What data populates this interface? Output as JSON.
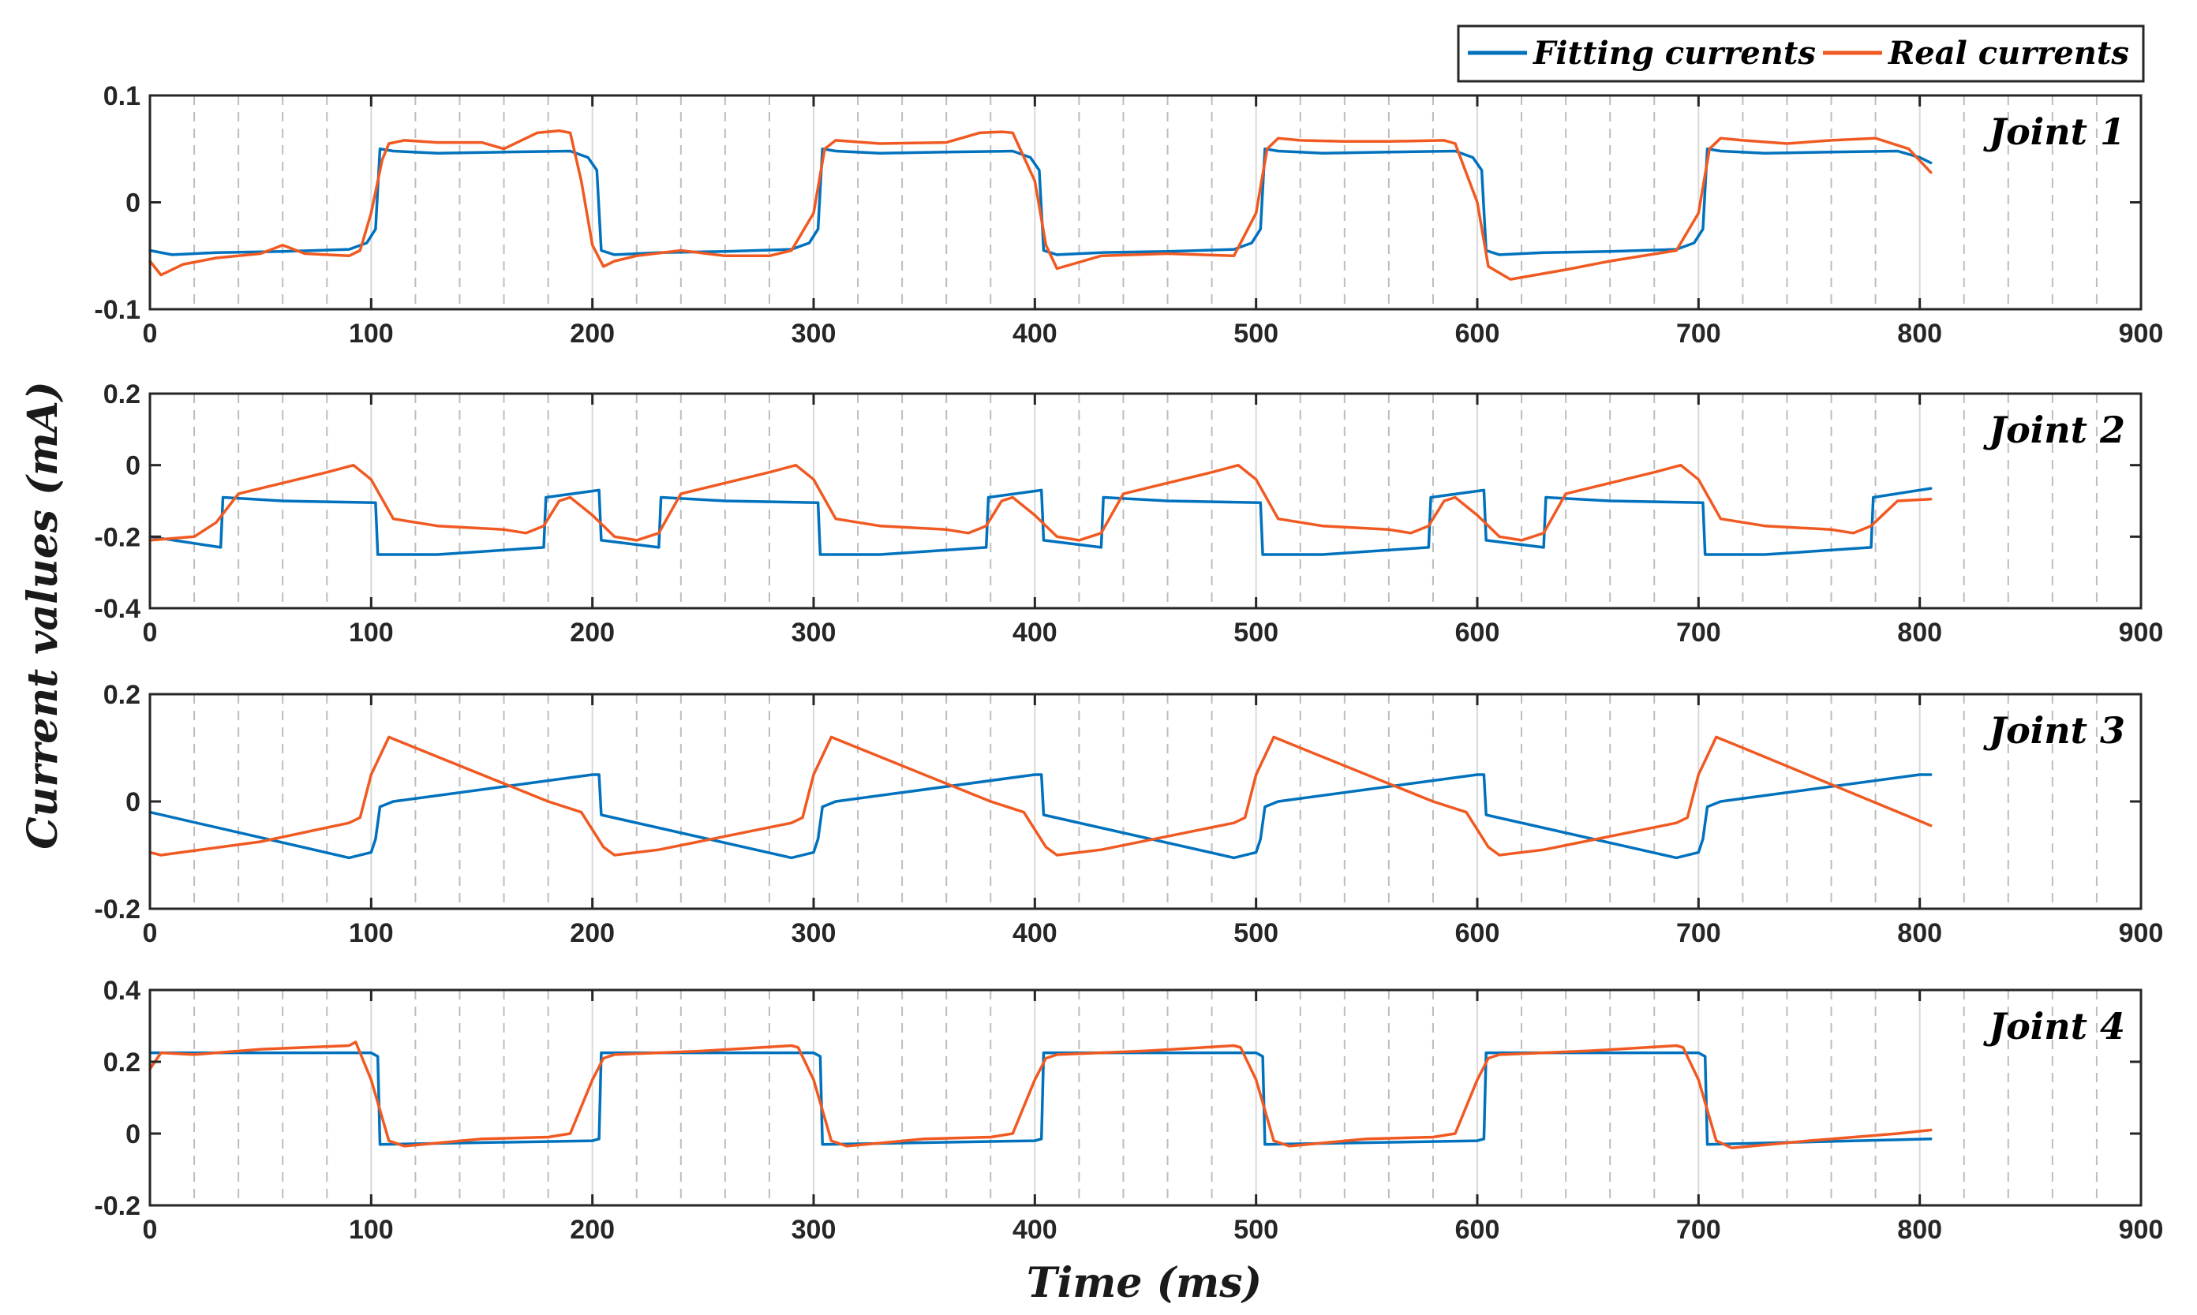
{
  "chart_data": {
    "type": "line",
    "xlabel": "Time (ms)",
    "ylabel": "Current values (mA)",
    "xlim": [
      0,
      900
    ],
    "xticks": [
      0,
      100,
      200,
      300,
      400,
      500,
      600,
      700,
      800,
      900
    ],
    "xtick_labels": [
      "0",
      "100",
      "200",
      "300",
      "400",
      "500",
      "600",
      "700",
      "800",
      "900"
    ],
    "grid": "vertical dashed every 20 ms",
    "legend": {
      "position": "top-right",
      "entries": [
        {
          "name": "Fitting currents",
          "color": "#0072BD"
        },
        {
          "name": "Real currents",
          "color": "#F05A22"
        }
      ]
    },
    "panels": [
      {
        "label": "Joint 1",
        "ylim": [
          -0.1,
          0.1
        ],
        "yticks": [
          -0.1,
          0,
          0.1
        ],
        "ytick_labels": [
          "-0.1",
          "0",
          "0.1"
        ],
        "series": [
          {
            "name": "Fitting currents",
            "color": "#0072BD",
            "x": [
              0,
              10,
              30,
              60,
              90,
              98,
              102,
              104,
              110,
              130,
              160,
              190,
              198,
              202,
              204,
              210,
              230,
              260,
              290,
              298,
              302,
              304,
              310,
              330,
              360,
              390,
              398,
              402,
              404,
              410,
              430,
              460,
              490,
              498,
              502,
              504,
              510,
              530,
              560,
              590,
              598,
              602,
              604,
              610,
              630,
              660,
              690,
              698,
              702,
              704,
              710,
              730,
              760,
              790,
              800,
              805
            ],
            "y": [
              -0.045,
              -0.049,
              -0.047,
              -0.046,
              -0.044,
              -0.038,
              -0.025,
              0.05,
              0.048,
              0.046,
              0.047,
              0.048,
              0.042,
              0.03,
              -0.045,
              -0.049,
              -0.047,
              -0.046,
              -0.044,
              -0.038,
              -0.025,
              0.05,
              0.048,
              0.046,
              0.047,
              0.048,
              0.042,
              0.03,
              -0.045,
              -0.049,
              -0.047,
              -0.046,
              -0.044,
              -0.038,
              -0.025,
              0.05,
              0.048,
              0.046,
              0.047,
              0.048,
              0.042,
              0.03,
              -0.045,
              -0.049,
              -0.047,
              -0.046,
              -0.044,
              -0.038,
              -0.025,
              0.05,
              0.048,
              0.046,
              0.047,
              0.048,
              0.042,
              0.037
            ]
          },
          {
            "name": "Real currents",
            "color": "#F05A22",
            "x": [
              0,
              5,
              15,
              30,
              50,
              60,
              70,
              90,
              95,
              100,
              105,
              108,
              115,
              130,
              150,
              160,
              175,
              185,
              190,
              195,
              200,
              205,
              210,
              220,
              240,
              260,
              280,
              290,
              300,
              305,
              310,
              330,
              360,
              375,
              385,
              390,
              400,
              405,
              410,
              430,
              460,
              490,
              500,
              505,
              510,
              520,
              540,
              560,
              585,
              590,
              600,
              605,
              615,
              640,
              660,
              690,
              700,
              705,
              710,
              720,
              740,
              760,
              780,
              795,
              805
            ],
            "y": [
              -0.055,
              -0.068,
              -0.058,
              -0.052,
              -0.048,
              -0.04,
              -0.048,
              -0.05,
              -0.045,
              -0.01,
              0.04,
              0.055,
              0.058,
              0.056,
              0.056,
              0.05,
              0.065,
              0.067,
              0.065,
              0.02,
              -0.04,
              -0.06,
              -0.055,
              -0.05,
              -0.045,
              -0.05,
              -0.05,
              -0.045,
              -0.01,
              0.05,
              0.058,
              0.055,
              0.056,
              0.065,
              0.066,
              0.065,
              0.02,
              -0.04,
              -0.062,
              -0.05,
              -0.048,
              -0.05,
              -0.01,
              0.05,
              0.06,
              0.058,
              0.057,
              0.057,
              0.058,
              0.055,
              0.0,
              -0.06,
              -0.072,
              -0.063,
              -0.055,
              -0.045,
              -0.01,
              0.05,
              0.06,
              0.058,
              0.055,
              0.058,
              0.06,
              0.05,
              0.028
            ]
          }
        ]
      },
      {
        "label": "Joint 2",
        "ylim": [
          -0.4,
          0.2
        ],
        "yticks": [
          -0.4,
          -0.2,
          0,
          0.2
        ],
        "ytick_labels": [
          "-0.4",
          "-0.2",
          "0",
          "0.2"
        ],
        "series": [
          {
            "name": "Fitting currents",
            "color": "#0072BD",
            "x": [
              0,
              32,
              33,
              60,
              102,
              103,
              130,
              178,
              179,
              203,
              204,
              230,
              231,
              260,
              302,
              303,
              330,
              378,
              379,
              403,
              404,
              430,
              431,
              460,
              502,
              503,
              530,
              578,
              579,
              603,
              604,
              630,
              631,
              660,
              702,
              703,
              730,
              778,
              779,
              805
            ],
            "y": [
              -0.2,
              -0.23,
              -0.09,
              -0.1,
              -0.105,
              -0.25,
              -0.25,
              -0.23,
              -0.09,
              -0.07,
              -0.21,
              -0.23,
              -0.09,
              -0.1,
              -0.105,
              -0.25,
              -0.25,
              -0.23,
              -0.09,
              -0.07,
              -0.21,
              -0.23,
              -0.09,
              -0.1,
              -0.105,
              -0.25,
              -0.25,
              -0.23,
              -0.09,
              -0.07,
              -0.21,
              -0.23,
              -0.09,
              -0.1,
              -0.105,
              -0.25,
              -0.25,
              -0.23,
              -0.09,
              -0.065
            ]
          },
          {
            "name": "Real currents",
            "color": "#F05A22",
            "x": [
              0,
              20,
              30,
              40,
              60,
              80,
              92,
              100,
              110,
              130,
              160,
              170,
              178,
              185,
              190,
              200,
              210,
              220,
              230,
              240,
              260,
              280,
              292,
              300,
              310,
              330,
              360,
              370,
              378,
              385,
              390,
              400,
              410,
              420,
              430,
              440,
              460,
              480,
              492,
              500,
              510,
              530,
              560,
              570,
              578,
              585,
              590,
              600,
              610,
              620,
              630,
              640,
              660,
              680,
              692,
              700,
              710,
              730,
              760,
              770,
              778,
              790,
              805
            ],
            "y": [
              -0.21,
              -0.2,
              -0.16,
              -0.08,
              -0.05,
              -0.02,
              0.0,
              -0.04,
              -0.15,
              -0.17,
              -0.18,
              -0.19,
              -0.17,
              -0.1,
              -0.09,
              -0.14,
              -0.2,
              -0.21,
              -0.19,
              -0.08,
              -0.05,
              -0.02,
              0.0,
              -0.04,
              -0.15,
              -0.17,
              -0.18,
              -0.19,
              -0.17,
              -0.1,
              -0.09,
              -0.14,
              -0.2,
              -0.21,
              -0.19,
              -0.08,
              -0.05,
              -0.02,
              0.0,
              -0.04,
              -0.15,
              -0.17,
              -0.18,
              -0.19,
              -0.17,
              -0.1,
              -0.09,
              -0.14,
              -0.2,
              -0.21,
              -0.19,
              -0.08,
              -0.05,
              -0.02,
              0.0,
              -0.04,
              -0.15,
              -0.17,
              -0.18,
              -0.19,
              -0.17,
              -0.1,
              -0.095
            ]
          }
        ]
      },
      {
        "label": "Joint 3",
        "ylim": [
          -0.2,
          0.2
        ],
        "yticks": [
          -0.2,
          0,
          0.2
        ],
        "ytick_labels": [
          "-0.2",
          "0",
          "0.2"
        ],
        "series": [
          {
            "name": "Fitting currents",
            "color": "#0072BD",
            "x": [
              0,
              90,
              100,
              102,
              104,
              110,
              200,
              203,
              204,
              290,
              300,
              302,
              304,
              310,
              400,
              403,
              404,
              490,
              500,
              502,
              504,
              510,
              600,
              603,
              604,
              690,
              700,
              702,
              704,
              710,
              800,
              805
            ],
            "y": [
              -0.02,
              -0.105,
              -0.095,
              -0.07,
              -0.01,
              0.0,
              0.05,
              0.05,
              -0.025,
              -0.105,
              -0.095,
              -0.07,
              -0.01,
              0.0,
              0.05,
              0.05,
              -0.025,
              -0.105,
              -0.095,
              -0.07,
              -0.01,
              0.0,
              0.05,
              0.05,
              -0.025,
              -0.105,
              -0.095,
              -0.07,
              -0.01,
              0.0,
              0.05,
              0.05
            ]
          },
          {
            "name": "Real currents",
            "color": "#F05A22",
            "x": [
              0,
              5,
              50,
              90,
              95,
              100,
              108,
              120,
              180,
              195,
              205,
              210,
              230,
              290,
              295,
              300,
              308,
              320,
              380,
              395,
              405,
              410,
              430,
              490,
              495,
              500,
              508,
              520,
              580,
              595,
              605,
              610,
              630,
              690,
              695,
              700,
              708,
              720,
              805
            ],
            "y": [
              -0.095,
              -0.1,
              -0.075,
              -0.04,
              -0.03,
              0.05,
              0.12,
              0.1,
              0.0,
              -0.02,
              -0.085,
              -0.1,
              -0.09,
              -0.04,
              -0.03,
              0.05,
              0.12,
              0.1,
              0.0,
              -0.02,
              -0.085,
              -0.1,
              -0.09,
              -0.04,
              -0.03,
              0.05,
              0.12,
              0.1,
              0.0,
              -0.02,
              -0.085,
              -0.1,
              -0.09,
              -0.04,
              -0.03,
              0.05,
              0.12,
              0.1,
              -0.045
            ]
          }
        ]
      },
      {
        "label": "Joint 4",
        "ylim": [
          -0.2,
          0.4
        ],
        "yticks": [
          -0.2,
          0,
          0.2,
          0.4
        ],
        "ytick_labels": [
          "-0.2",
          "0",
          "0.2",
          "0.4"
        ],
        "series": [
          {
            "name": "Fitting currents",
            "color": "#0072BD",
            "x": [
              0,
              100,
              103,
              104,
              200,
              203,
              204,
              300,
              303,
              304,
              400,
              403,
              404,
              500,
              503,
              504,
              600,
              603,
              604,
              700,
              703,
              704,
              805
            ],
            "y": [
              0.225,
              0.225,
              0.215,
              -0.03,
              -0.02,
              -0.015,
              0.225,
              0.225,
              0.215,
              -0.03,
              -0.02,
              -0.015,
              0.225,
              0.225,
              0.215,
              -0.03,
              -0.02,
              -0.015,
              0.225,
              0.225,
              0.215,
              -0.03,
              -0.015
            ]
          },
          {
            "name": "Real currents",
            "color": "#F05A22",
            "x": [
              0,
              5,
              20,
              50,
              90,
              93,
              100,
              108,
              115,
              150,
              180,
              190,
              200,
              205,
              210,
              250,
              290,
              293,
              300,
              308,
              315,
              350,
              380,
              390,
              400,
              405,
              410,
              450,
              490,
              493,
              500,
              508,
              515,
              550,
              580,
              590,
              600,
              605,
              610,
              650,
              690,
              693,
              700,
              708,
              715,
              750,
              790,
              805
            ],
            "y": [
              0.18,
              0.225,
              0.22,
              0.235,
              0.245,
              0.255,
              0.15,
              -0.02,
              -0.035,
              -0.015,
              -0.01,
              0.0,
              0.15,
              0.21,
              0.22,
              0.23,
              0.245,
              0.24,
              0.15,
              -0.02,
              -0.035,
              -0.015,
              -0.01,
              0.0,
              0.15,
              0.21,
              0.22,
              0.23,
              0.245,
              0.24,
              0.15,
              -0.02,
              -0.035,
              -0.015,
              -0.01,
              0.0,
              0.15,
              0.21,
              0.22,
              0.23,
              0.245,
              0.24,
              0.15,
              -0.02,
              -0.04,
              -0.02,
              0.0,
              0.01
            ]
          }
        ]
      }
    ]
  }
}
